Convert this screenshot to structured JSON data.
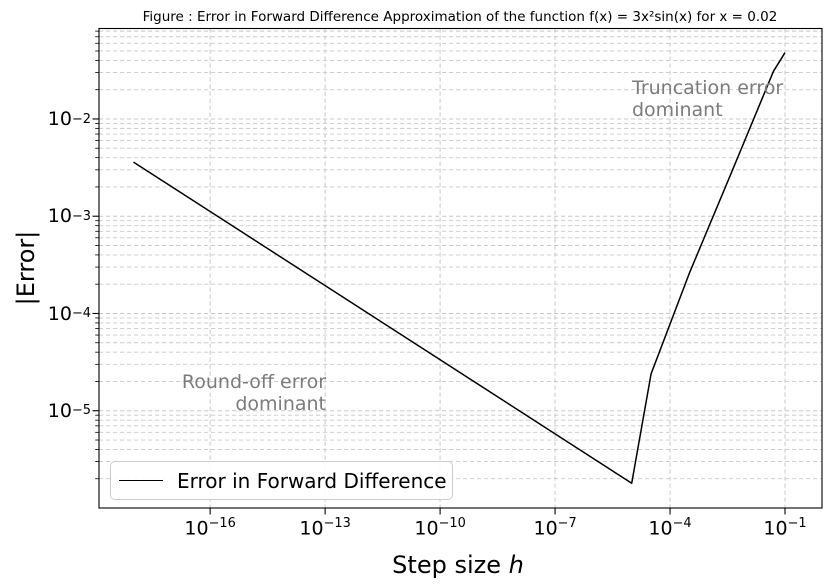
{
  "chart": {
    "title": "Figure : Error in Forward Difference Approximation of the function f(x) = 3x²sin(x) for x = 0.02",
    "xlabel_text": "Step size ",
    "xlabel_var": "h",
    "ylabel": "|Error|",
    "annotations": {
      "truncation": "Truncation error\ndominant",
      "roundoff": "Round-off error\ndominant"
    }
  },
  "legend": {
    "label": "Error in Forward Difference"
  },
  "colors": {
    "curve": "#000000",
    "grid": "#c8c8c8",
    "annotation_gray": "#7b7b7b",
    "frame": "#000000"
  },
  "chart_data": {
    "type": "line",
    "title": "Figure : Error in Forward Difference Approximation of the function f(x) = 3x²sin(x) for x = 0.02",
    "xlabel": "Step size h",
    "ylabel": "|Error|",
    "x_scale": "log",
    "y_scale": "log",
    "xlim_log10": [
      -18.9,
      -0.035
    ],
    "ylim_log10": [
      -6.0,
      -1.07
    ],
    "x_ticks_log10": [
      -16,
      -13,
      -10,
      -7,
      -4,
      -1
    ],
    "y_ticks_log10": [
      -2,
      -3,
      -4,
      -5
    ],
    "grid": {
      "vertical": "major_only",
      "horizontal": "major_and_minor",
      "style": "dashed",
      "color": "#c8c8c8"
    },
    "legend_position": "lower left",
    "series": [
      {
        "name": "Error in Forward Difference",
        "color": "#000000",
        "points": [
          [
            1e-18,
            0.0036
          ],
          [
            1e-05,
            1.8e-06
          ],
          [
            3.2e-05,
            2.4e-05
          ],
          [
            0.00032,
            0.00026
          ],
          [
            0.004,
            0.0028
          ],
          [
            0.05,
            0.031
          ],
          [
            0.1,
            0.048
          ]
        ],
        "note_minimum": "V-shaped curve: round-off error dominates left branch (1e-18 to 1e-5), truncation error dominates right branch (1e-5 to 1e-1)"
      }
    ]
  }
}
